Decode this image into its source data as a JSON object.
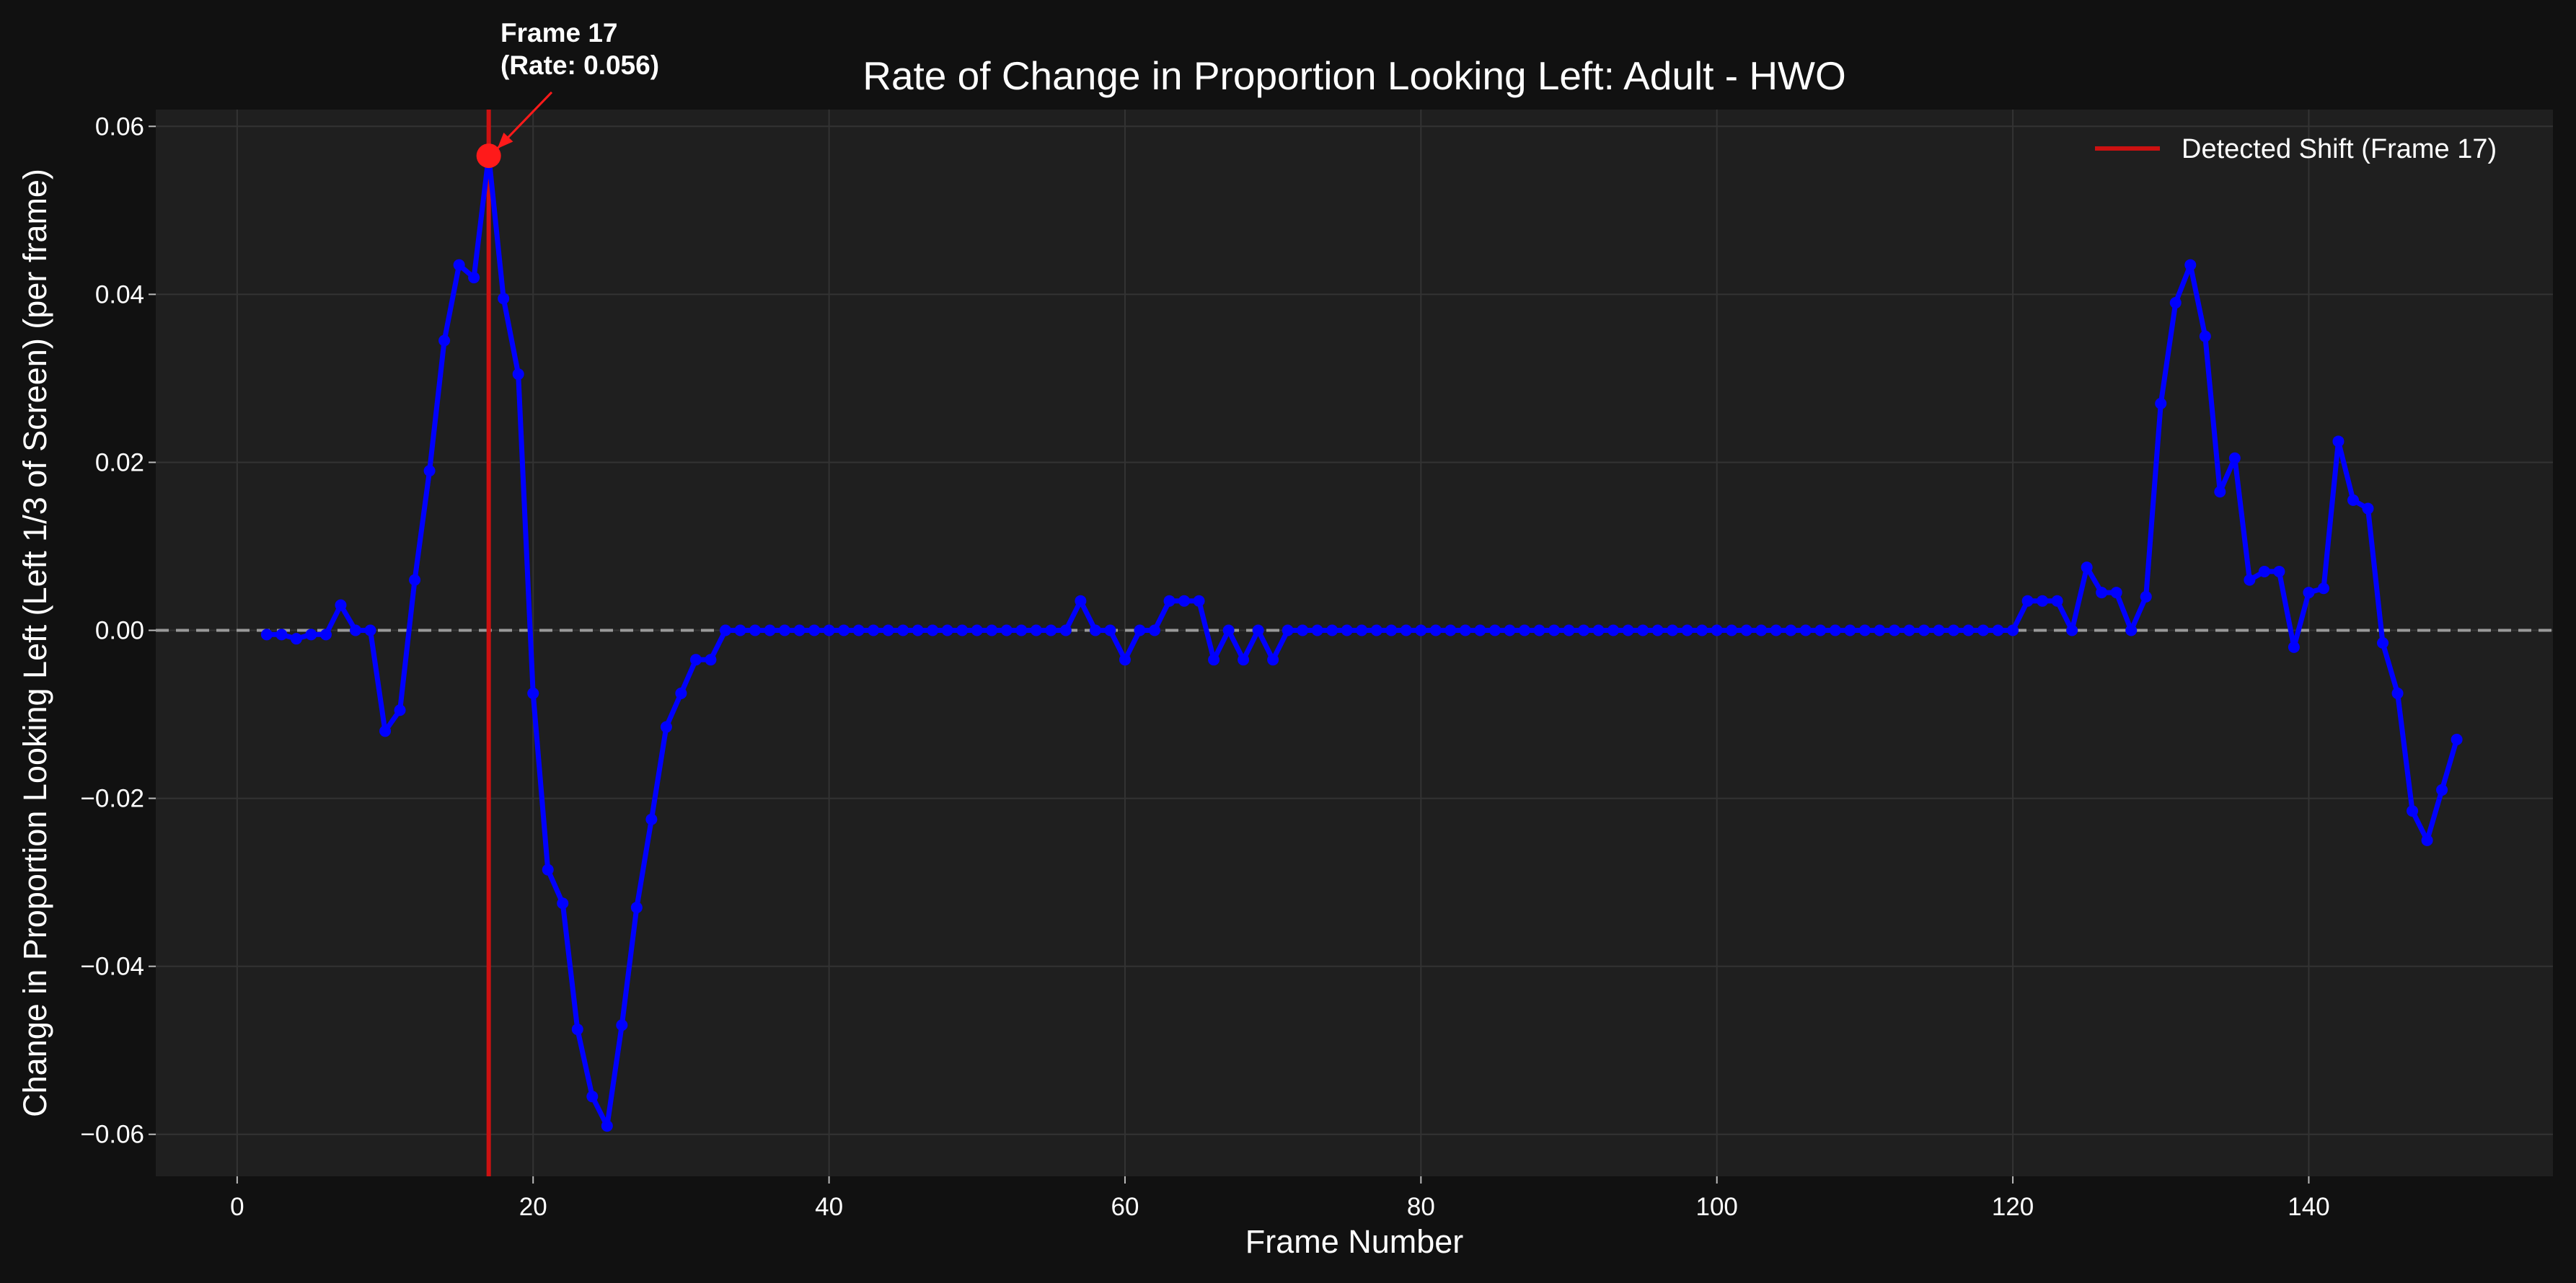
{
  "chart_data": {
    "type": "line",
    "title": "Rate of Change in Proportion Looking Left: Adult - HWO",
    "xlabel": "Frame Number",
    "ylabel": "Change in Proportion Looking Left (Left 1/3 of Screen) (per frame)",
    "xlim": [
      -5.5,
      156.5
    ],
    "ylim": [
      -0.065,
      0.062
    ],
    "xticks": [
      0,
      20,
      40,
      60,
      80,
      100,
      120,
      140
    ],
    "yticks": [
      -0.06,
      -0.04,
      -0.02,
      0.0,
      0.02,
      0.04,
      0.06
    ],
    "ytick_labels": [
      "−0.06",
      "−0.04",
      "−0.02",
      "0.00",
      "0.02",
      "0.04",
      "0.06"
    ],
    "grid": true,
    "legend_position": "top-right",
    "colors": {
      "series": "#0000ff",
      "shift": "#cc1111",
      "marker": "#ff1a1a",
      "zero_line": "#9a9a9a",
      "plot_bg": "#1f1f1f",
      "figure_bg": "#111111",
      "grid": "#333333"
    },
    "shift": {
      "frame": 17,
      "legend_label": "Detected Shift (Frame 17)"
    },
    "annotation": {
      "line1": "Frame 17",
      "line2": "(Rate: 0.056)",
      "x": 17,
      "y": 0.0565
    },
    "series": [
      {
        "x": [
          2,
          3,
          4,
          5,
          6,
          7,
          8,
          9,
          10,
          11,
          12,
          13,
          14,
          15,
          16,
          17,
          18,
          19,
          20,
          21,
          22,
          23,
          24,
          25,
          26,
          27,
          28,
          29,
          30,
          31,
          32,
          33,
          34,
          35,
          36,
          37,
          38,
          39,
          40,
          41,
          42,
          43,
          44,
          45,
          46,
          47,
          48,
          49,
          50,
          51,
          52,
          53,
          54,
          55,
          56,
          57,
          58,
          59,
          60,
          61,
          62,
          63,
          64,
          65,
          66,
          67,
          68,
          69,
          70,
          71,
          72,
          73,
          74,
          75,
          76,
          77,
          78,
          79,
          80,
          81,
          82,
          83,
          84,
          85,
          86,
          87,
          88,
          89,
          90,
          91,
          92,
          93,
          94,
          95,
          96,
          97,
          98,
          99,
          100,
          101,
          102,
          103,
          104,
          105,
          106,
          107,
          108,
          109,
          110,
          111,
          112,
          113,
          114,
          115,
          116,
          117,
          118,
          119,
          120,
          121,
          122,
          123,
          124,
          125,
          126,
          127,
          128,
          129,
          130,
          131,
          132,
          133,
          134,
          135,
          136,
          137,
          138,
          139,
          140,
          141,
          142,
          143,
          144,
          145,
          146,
          147,
          148,
          149,
          150
        ],
        "values": [
          -0.0005,
          -0.0005,
          -0.001,
          -0.0005,
          -0.0005,
          0.003,
          0.0,
          0.0,
          -0.012,
          -0.0095,
          0.006,
          0.019,
          0.0345,
          0.0435,
          0.042,
          0.0565,
          0.0395,
          0.0305,
          -0.0075,
          -0.0285,
          -0.0325,
          -0.0475,
          -0.0555,
          -0.059,
          -0.047,
          -0.033,
          -0.0225,
          -0.0115,
          -0.0075,
          -0.0035,
          -0.0035,
          0.0,
          0.0,
          0.0,
          0.0,
          0.0,
          0.0,
          0.0,
          0.0,
          0.0,
          0.0,
          0.0,
          0.0,
          0.0,
          0.0,
          0.0,
          0.0,
          0.0,
          0.0,
          0.0,
          0.0,
          0.0,
          0.0,
          0.0,
          0.0,
          0.0035,
          0.0,
          0.0,
          -0.0035,
          0.0,
          0.0,
          0.0035,
          0.0035,
          0.0035,
          -0.0035,
          0.0,
          -0.0035,
          0.0,
          -0.0035,
          0.0,
          0.0,
          0.0,
          0.0,
          0.0,
          0.0,
          0.0,
          0.0,
          0.0,
          0.0,
          0.0,
          0.0,
          0.0,
          0.0,
          0.0,
          0.0,
          0.0,
          0.0,
          0.0,
          0.0,
          0.0,
          0.0,
          0.0,
          0.0,
          0.0,
          0.0,
          0.0,
          0.0,
          0.0,
          0.0,
          0.0,
          0.0,
          0.0,
          0.0,
          0.0,
          0.0,
          0.0,
          0.0,
          0.0,
          0.0,
          0.0,
          0.0,
          0.0,
          0.0,
          0.0,
          0.0,
          0.0,
          0.0,
          0.0,
          0.0,
          0.0035,
          0.0035,
          0.0035,
          0.0,
          0.0075,
          0.0045,
          0.0045,
          0.0,
          0.004,
          0.027,
          0.039,
          0.0435,
          0.035,
          0.0165,
          0.0205,
          0.006,
          0.007,
          0.007,
          -0.002,
          0.0045,
          0.005,
          0.0225,
          0.0155,
          0.0145,
          -0.0015,
          -0.0075,
          -0.0215,
          -0.025,
          -0.019,
          -0.013
        ]
      }
    ]
  }
}
